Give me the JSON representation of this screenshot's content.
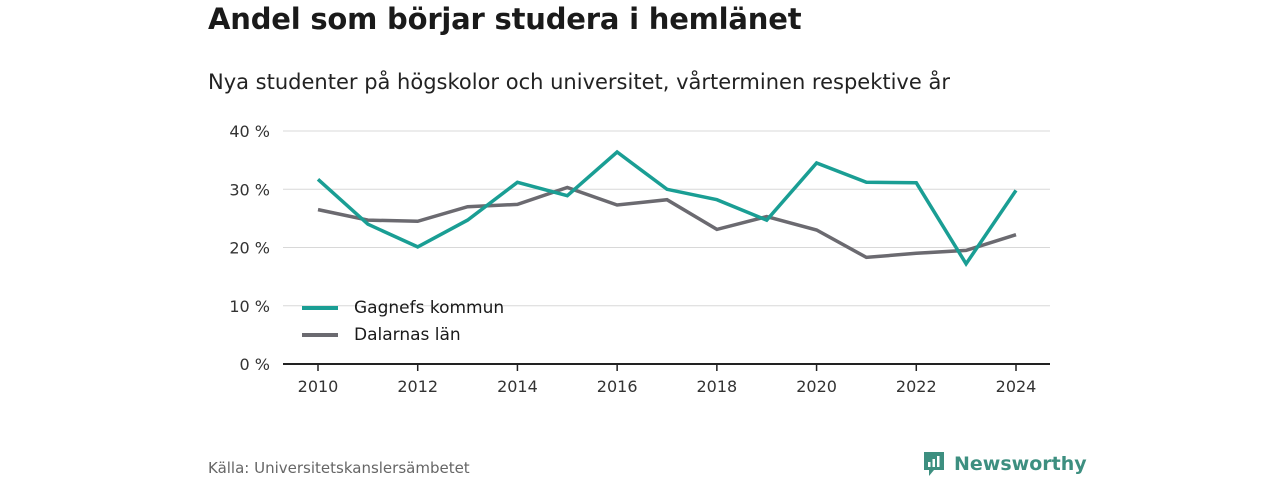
{
  "title": "Andel som börjar studera i hemlänet",
  "subtitle": "Nya studenter på högskolor och universitet, vårterminen respektive år",
  "source": "Källa: Universitetskanslersämbetet",
  "brand": "Newsworthy",
  "colors": {
    "series_1": "#1a9e94",
    "series_2": "#6b6a70",
    "brand": "#3d8f80",
    "grid": "#d8d8d8",
    "axis": "#222222"
  },
  "chart_data": {
    "type": "line",
    "title": "Andel som börjar studera i hemlänet",
    "subtitle": "Nya studenter på högskolor och universitet, vårterminen respektive år",
    "x": [
      2010,
      2011,
      2012,
      2013,
      2014,
      2015,
      2016,
      2017,
      2018,
      2019,
      2020,
      2021,
      2022,
      2023,
      2024
    ],
    "x_ticks": [
      2010,
      2012,
      2014,
      2016,
      2018,
      2020,
      2022,
      2024
    ],
    "y_ticks": [
      0,
      10,
      20,
      30,
      40
    ],
    "y_tick_labels": [
      "0 %",
      "10 %",
      "20 %",
      "30 %",
      "40 %"
    ],
    "ylim": [
      0,
      40
    ],
    "grid": true,
    "legend_position": "bottom-left",
    "series": [
      {
        "name": "Gagnefs kommun",
        "values": [
          31.7,
          24.0,
          20.1,
          24.7,
          31.2,
          28.9,
          36.4,
          30.0,
          28.2,
          24.7,
          34.5,
          31.2,
          31.1,
          17.2,
          29.8
        ]
      },
      {
        "name": "Dalarnas län",
        "values": [
          26.5,
          24.7,
          24.5,
          27.0,
          27.4,
          30.3,
          27.3,
          28.2,
          23.1,
          25.3,
          23.0,
          18.3,
          19.0,
          19.5,
          22.2
        ]
      }
    ]
  }
}
